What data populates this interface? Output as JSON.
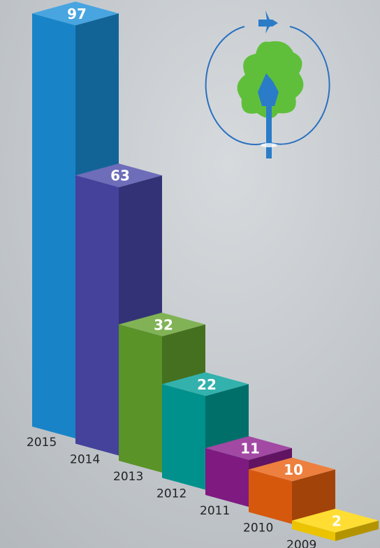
{
  "chart_data": {
    "type": "bar",
    "categories": [
      "2015",
      "2014",
      "2013",
      "2012",
      "2011",
      "2010",
      "2009"
    ],
    "values": [
      97,
      63,
      32,
      22,
      11,
      10,
      2
    ],
    "colors": [
      "#1a8fd8",
      "#4a48a8",
      "#62a02c",
      "#009e98",
      "#8a1c8c",
      "#e8600e",
      "#ffd400"
    ]
  }
}
